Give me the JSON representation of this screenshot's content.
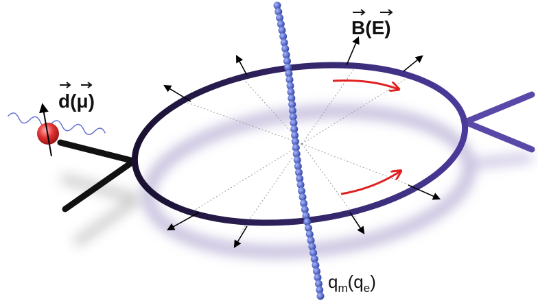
{
  "dipole_label": [
    "d",
    "(",
    "μ",
    ")"
  ],
  "field_label": [
    "B",
    "(",
    "E",
    ")"
  ],
  "charge_label": [
    "q",
    "m",
    "(q",
    "e",
    ")"
  ]
}
